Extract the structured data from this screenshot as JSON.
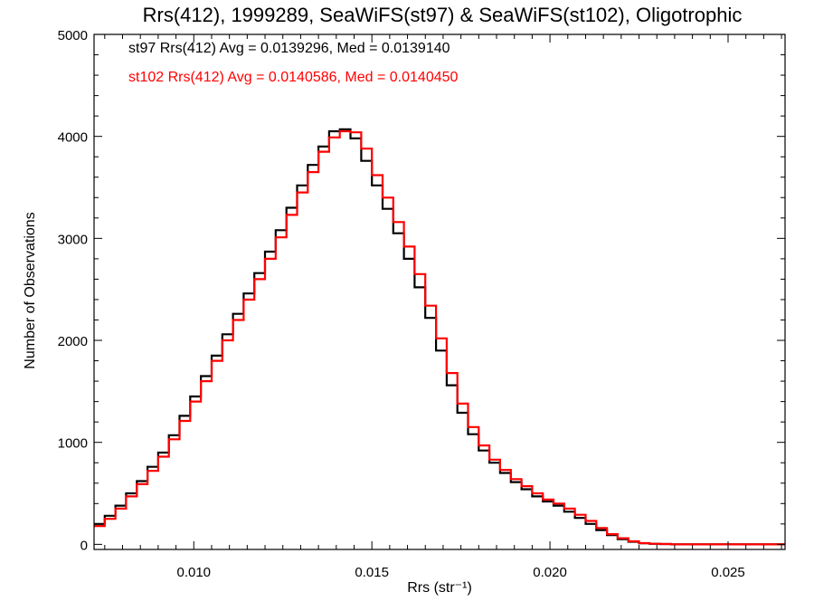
{
  "chart_data": {
    "type": "line",
    "title": "Rrs(412), 1999289, SeaWiFS(st97) & SeaWiFS(st102), Oligotrophic",
    "xlabel": "Rrs (str⁻¹)",
    "ylabel": "Number of Observations",
    "xlim": [
      0.0072,
      0.0266
    ],
    "ylim": [
      -50,
      5000
    ],
    "x_ticks": [
      "0.010",
      "0.015",
      "0.020",
      "0.025"
    ],
    "x_tick_values": [
      0.01,
      0.015,
      0.02,
      0.025
    ],
    "y_ticks": [
      "0",
      "1000",
      "2000",
      "3000",
      "4000",
      "5000"
    ],
    "y_tick_values": [
      0,
      1000,
      2000,
      3000,
      4000,
      5000
    ],
    "grid": false,
    "legend": [
      {
        "text": "st97 Rrs(412) Avg = 0.0139296, Med = 0.0139140",
        "color": "#000000"
      },
      {
        "text": "st102 Rrs(412) Avg = 0.0140586, Med = 0.0140450",
        "color": "#ff0000"
      }
    ],
    "series": [
      {
        "color": "#000000",
        "x": [
          0.0072,
          0.0075,
          0.0078,
          0.0081,
          0.0084,
          0.0087,
          0.009,
          0.0093,
          0.0096,
          0.0099,
          0.0102,
          0.0105,
          0.0108,
          0.0111,
          0.0114,
          0.0117,
          0.012,
          0.0123,
          0.0126,
          0.0129,
          0.0132,
          0.0135,
          0.0138,
          0.0141,
          0.0144,
          0.0147,
          0.015,
          0.0153,
          0.0156,
          0.0159,
          0.0162,
          0.0165,
          0.0168,
          0.0171,
          0.0174,
          0.0177,
          0.018,
          0.0183,
          0.0186,
          0.0189,
          0.0192,
          0.0195,
          0.0198,
          0.0201,
          0.0204,
          0.0207,
          0.021,
          0.0213,
          0.0216,
          0.0219,
          0.0222,
          0.0225,
          0.0228,
          0.0231,
          0.0234,
          0.0237,
          0.024,
          0.0245,
          0.025,
          0.0255,
          0.026,
          0.0266
        ],
        "y": [
          200,
          280,
          380,
          500,
          620,
          760,
          900,
          1070,
          1260,
          1450,
          1650,
          1850,
          2060,
          2260,
          2460,
          2660,
          2870,
          3080,
          3300,
          3520,
          3720,
          3900,
          4050,
          4070,
          3980,
          3760,
          3520,
          3290,
          3050,
          2800,
          2520,
          2220,
          1900,
          1560,
          1290,
          1080,
          920,
          800,
          700,
          610,
          540,
          470,
          420,
          380,
          320,
          260,
          200,
          140,
          90,
          50,
          25,
          10,
          5,
          3,
          1,
          0,
          0,
          0,
          0,
          0,
          0,
          0
        ]
      },
      {
        "color": "#ff0000",
        "x": [
          0.0072,
          0.0075,
          0.0078,
          0.0081,
          0.0084,
          0.0087,
          0.009,
          0.0093,
          0.0096,
          0.0099,
          0.0102,
          0.0105,
          0.0108,
          0.0111,
          0.0114,
          0.0117,
          0.012,
          0.0123,
          0.0126,
          0.0129,
          0.0132,
          0.0135,
          0.0138,
          0.0141,
          0.0144,
          0.0147,
          0.015,
          0.0153,
          0.0156,
          0.0159,
          0.0162,
          0.0165,
          0.0168,
          0.0171,
          0.0174,
          0.0177,
          0.018,
          0.0183,
          0.0186,
          0.0189,
          0.0192,
          0.0195,
          0.0198,
          0.0201,
          0.0204,
          0.0207,
          0.021,
          0.0213,
          0.0216,
          0.0219,
          0.0222,
          0.0225,
          0.0228,
          0.0231,
          0.0234,
          0.0237,
          0.024,
          0.0245,
          0.025,
          0.0255,
          0.026,
          0.0266
        ],
        "y": [
          180,
          250,
          350,
          470,
          590,
          720,
          860,
          1030,
          1210,
          1400,
          1600,
          1800,
          2000,
          2200,
          2400,
          2600,
          2800,
          3010,
          3230,
          3450,
          3650,
          3850,
          3990,
          4050,
          4040,
          3880,
          3620,
          3400,
          3160,
          2920,
          2650,
          2340,
          2020,
          1680,
          1380,
          1150,
          970,
          830,
          730,
          640,
          570,
          500,
          440,
          400,
          350,
          290,
          230,
          160,
          100,
          60,
          30,
          12,
          6,
          3,
          1,
          0,
          0,
          0,
          0,
          0,
          0,
          0
        ]
      }
    ]
  }
}
